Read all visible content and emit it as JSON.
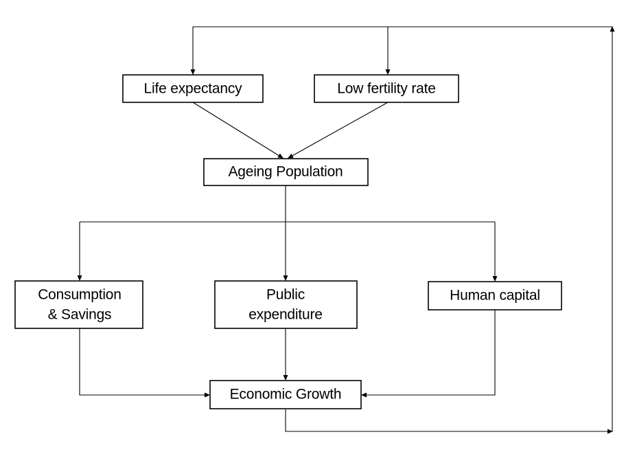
{
  "diagram": {
    "nodes": {
      "life_expectancy": {
        "label": "Life expectancy"
      },
      "low_fertility": {
        "label": "Low fertility rate"
      },
      "ageing_population": {
        "label": "Ageing Population"
      },
      "consumption_savings": {
        "line1": "Consumption",
        "line2": "& Savings"
      },
      "public_expenditure": {
        "line1": "Public",
        "line2": "expenditure"
      },
      "human_capital": {
        "label": "Human capital"
      },
      "economic_growth": {
        "label": "Economic Growth"
      }
    },
    "line_color": "#000000",
    "box_fill": "#ffffff"
  }
}
